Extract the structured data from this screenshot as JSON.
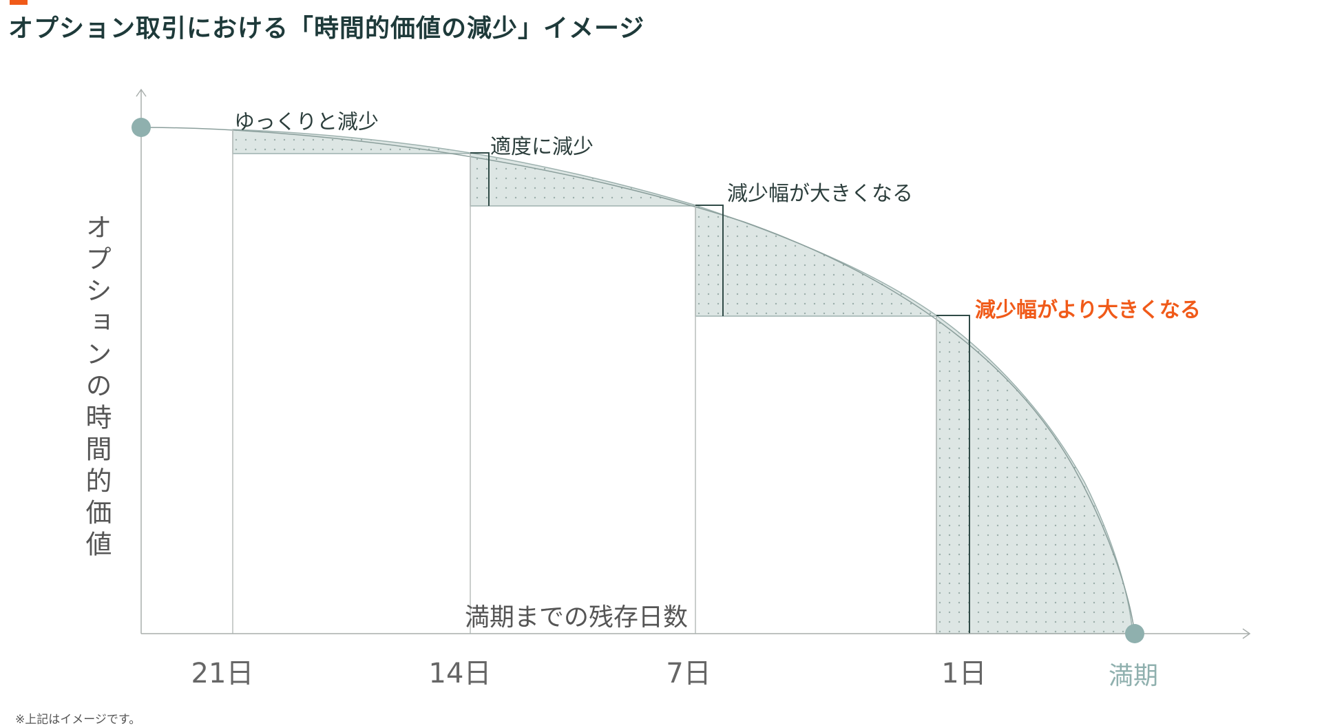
{
  "title": "オプション取引における「時間的価値の減少」イメージ",
  "y_axis_label": "オプションの時間的価値",
  "x_axis_label": "満期までの残存日数",
  "ticks": [
    "21日",
    "14日",
    "7日",
    "1日",
    "満期"
  ],
  "annotations": {
    "slow": "ゆっくりと減少",
    "moderate": "適度に減少",
    "larger": "減少幅が大きくなる",
    "even_larger": "減少幅がより大きくなる"
  },
  "footnote": "※上記はイメージです。",
  "colors": {
    "accent": "#f05a19",
    "title": "#1e3a3a",
    "curve_fill": "#dde6e4",
    "marker": "#8fb0ae",
    "gridline": "#b8bdbc"
  }
}
